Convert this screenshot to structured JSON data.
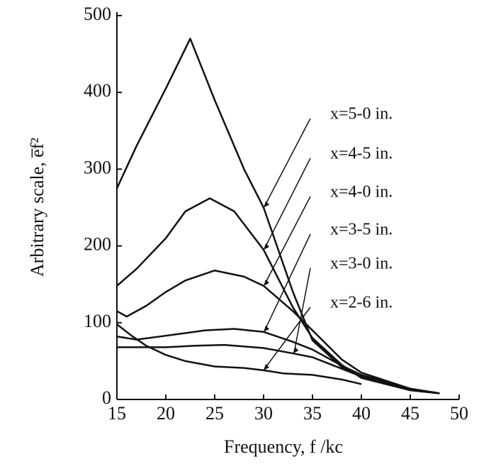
{
  "chart_data": {
    "type": "line",
    "x_label": "Frequency, f /kc",
    "y_label": "Arbitrary scale, e̅f²",
    "xlim": [
      15,
      50
    ],
    "xticks": [
      15,
      20,
      25,
      30,
      35,
      40,
      45,
      50
    ],
    "ylim": [
      0,
      500
    ],
    "yticks": [
      0,
      100,
      200,
      300,
      400,
      500
    ],
    "series": [
      {
        "name": "x=5-0 in.",
        "color": "#111111",
        "x": [
          15,
          17,
          20,
          22.5,
          25,
          28,
          30,
          33,
          35,
          38,
          40,
          45,
          48
        ],
        "values": [
          275,
          330,
          405,
          470,
          390,
          300,
          250,
          140,
          77,
          42,
          30,
          12,
          8
        ]
      },
      {
        "name": "x=4-5 in.",
        "color": "#111111",
        "x": [
          15,
          17,
          20,
          22,
          24.5,
          27,
          30,
          33,
          35,
          38,
          40,
          45,
          48
        ],
        "values": [
          148,
          170,
          210,
          245,
          262,
          245,
          195,
          120,
          80,
          45,
          28,
          12,
          8
        ]
      },
      {
        "name": "x=4-0 in.",
        "color": "#111111",
        "x": [
          15,
          16,
          18,
          20,
          22,
          25,
          28,
          30,
          33,
          35,
          38,
          40,
          45,
          48
        ],
        "values": [
          115,
          108,
          122,
          140,
          155,
          168,
          160,
          148,
          115,
          90,
          52,
          35,
          14,
          8
        ]
      },
      {
        "name": "x=3-5 in.",
        "color": "#111111",
        "x": [
          15,
          17,
          20,
          24,
          27,
          30,
          33,
          35,
          38,
          40,
          45,
          48
        ],
        "values": [
          82,
          78,
          83,
          90,
          92,
          88,
          75,
          65,
          44,
          32,
          14,
          8
        ]
      },
      {
        "name": "x=3-0 in.",
        "color": "#111111",
        "x": [
          15,
          20,
          23,
          26,
          30,
          33,
          35,
          38,
          40,
          45,
          48
        ],
        "values": [
          68,
          68,
          70,
          71,
          67,
          60,
          55,
          40,
          30,
          14,
          8
        ]
      },
      {
        "name": "x=2-6 in.",
        "color": "#111111",
        "x": [
          15,
          16.5,
          18,
          20,
          22,
          25,
          28,
          30,
          32,
          35,
          38,
          40
        ],
        "values": [
          98,
          83,
          70,
          58,
          50,
          43,
          41,
          38,
          34,
          32,
          26,
          20
        ]
      }
    ]
  }
}
